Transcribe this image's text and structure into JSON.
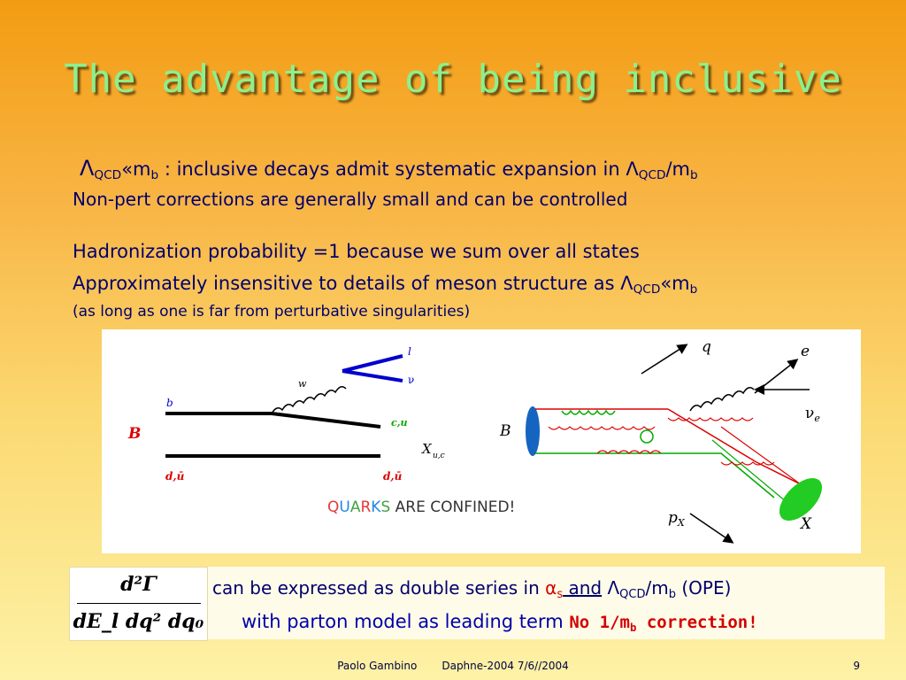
{
  "title": "The advantage of being inclusive",
  "bullets": {
    "l1": {
      "lam": "Λ",
      "qcd": "QCD",
      "ll": "«m",
      "b": "b",
      "text": " : inclusive decays admit systematic expansion in Λ",
      "qcd2": "QCD",
      "slash": "/m",
      "b2": "b"
    },
    "l2": "Non-pert corrections are generally small and can be controlled",
    "l3": "Hadronization probability =1 because we sum over all states",
    "l4": {
      "text": "Approximately insensitive to details of meson structure as Λ",
      "qcd": "QCD",
      "ll": "«m",
      "b": "b"
    },
    "l5": "(as long as one is far from perturbative singularities)"
  },
  "figure": {
    "left": {
      "b": "b",
      "B": "B",
      "w": "w",
      "l": "l",
      "nu": "ν",
      "cu": "c,u",
      "dbar": "d,ū",
      "X": "X",
      "Xsub": "u,c"
    },
    "confined": {
      "quarks": [
        "Q",
        "U",
        "A",
        "R",
        "K",
        "S"
      ],
      "quark_colors": [
        "#e53935",
        "#1e88e5",
        "#43a047",
        "#e53935",
        "#1e88e5",
        "#43a047"
      ],
      "rest": " ARE CONFINED!"
    },
    "right": {
      "q": "q",
      "e": "e",
      "nu": "ν",
      "nusub": "e",
      "B": "B",
      "p": "p",
      "psub": "X",
      "X": "X"
    }
  },
  "formula": {
    "numerator": "d²Γ",
    "denominator": "dE_l dq² dq₀",
    "line1": {
      "pre": "can be expressed as double series in ",
      "alpha": "α",
      "s": "s",
      "and": " and",
      "mid": " Λ",
      "qcd": "QCD",
      "slash": "/m",
      "b": "b",
      "post": " (OPE)"
    },
    "line2": {
      "pre": "with parton model as leading term ",
      "red": "No 1/m",
      "redb": "b",
      "red2": " correction!"
    }
  },
  "footer": {
    "author": "Paolo Gambino",
    "conf": "Daphne-2004  7/6//2004",
    "page": "9"
  }
}
